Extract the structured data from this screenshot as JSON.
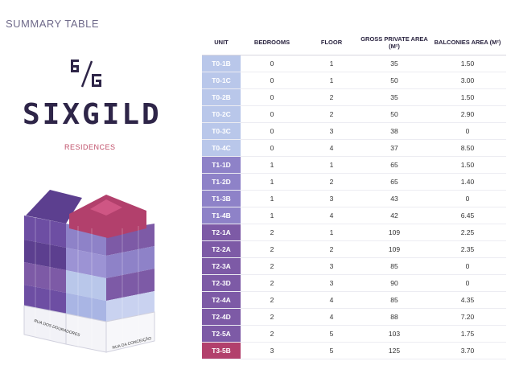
{
  "page": {
    "title": "SUMMARY TABLE"
  },
  "brand": {
    "logo_mark": "6/G",
    "name": "SIXGILD",
    "subtitle": "RESIDENCES"
  },
  "building": {
    "street_label_1": "RUA DOS DOURADORES",
    "street_label_2": "RUA DA CONCEIÇÃO"
  },
  "table": {
    "headers": {
      "unit": "UNIT",
      "bedrooms": "BEDROOMS",
      "floor": "FLOOR",
      "gpa": "GROSS PRIVATE AREA (m²)",
      "balconies": "BALCONIES AREA (m²)"
    },
    "rows": [
      {
        "unit": "T0-1B",
        "bedrooms": "0",
        "floor": "1",
        "gpa": "35",
        "balconies": "1.50",
        "color": "#b9c7ea"
      },
      {
        "unit": "T0-1C",
        "bedrooms": "0",
        "floor": "1",
        "gpa": "50",
        "balconies": "3.00",
        "color": "#b9c7ea"
      },
      {
        "unit": "T0-2B",
        "bedrooms": "0",
        "floor": "2",
        "gpa": "35",
        "balconies": "1.50",
        "color": "#b9c7ea"
      },
      {
        "unit": "T0-2C",
        "bedrooms": "0",
        "floor": "2",
        "gpa": "50",
        "balconies": "2.90",
        "color": "#b9c7ea"
      },
      {
        "unit": "T0-3C",
        "bedrooms": "0",
        "floor": "3",
        "gpa": "38",
        "balconies": "0",
        "color": "#b9c7ea"
      },
      {
        "unit": "T0-4C",
        "bedrooms": "0",
        "floor": "4",
        "gpa": "37",
        "balconies": "8.50",
        "color": "#b9c7ea"
      },
      {
        "unit": "T1-1D",
        "bedrooms": "1",
        "floor": "1",
        "gpa": "65",
        "balconies": "1.50",
        "color": "#8e82c8"
      },
      {
        "unit": "T1-2D",
        "bedrooms": "1",
        "floor": "2",
        "gpa": "65",
        "balconies": "1.40",
        "color": "#8e82c8"
      },
      {
        "unit": "T1-3B",
        "bedrooms": "1",
        "floor": "3",
        "gpa": "43",
        "balconies": "0",
        "color": "#8e82c8"
      },
      {
        "unit": "T1-4B",
        "bedrooms": "1",
        "floor": "4",
        "gpa": "42",
        "balconies": "6.45",
        "color": "#8e82c8"
      },
      {
        "unit": "T2-1A",
        "bedrooms": "2",
        "floor": "1",
        "gpa": "109",
        "balconies": "2.25",
        "color": "#7d5aa6"
      },
      {
        "unit": "T2-2A",
        "bedrooms": "2",
        "floor": "2",
        "gpa": "109",
        "balconies": "2.35",
        "color": "#7d5aa6"
      },
      {
        "unit": "T2-3A",
        "bedrooms": "2",
        "floor": "3",
        "gpa": "85",
        "balconies": "0",
        "color": "#7d5aa6"
      },
      {
        "unit": "T2-3D",
        "bedrooms": "2",
        "floor": "3",
        "gpa": "90",
        "balconies": "0",
        "color": "#7d5aa6"
      },
      {
        "unit": "T2-4A",
        "bedrooms": "2",
        "floor": "4",
        "gpa": "85",
        "balconies": "4.35",
        "color": "#7d5aa6"
      },
      {
        "unit": "T2-4D",
        "bedrooms": "2",
        "floor": "4",
        "gpa": "88",
        "balconies": "7.20",
        "color": "#7d5aa6"
      },
      {
        "unit": "T2-5A",
        "bedrooms": "2",
        "floor": "5",
        "gpa": "103",
        "balconies": "1.75",
        "color": "#7d5aa6"
      },
      {
        "unit": "T3-5B",
        "bedrooms": "3",
        "floor": "5",
        "gpa": "125",
        "balconies": "3.70",
        "color": "#b2406c"
      }
    ]
  }
}
